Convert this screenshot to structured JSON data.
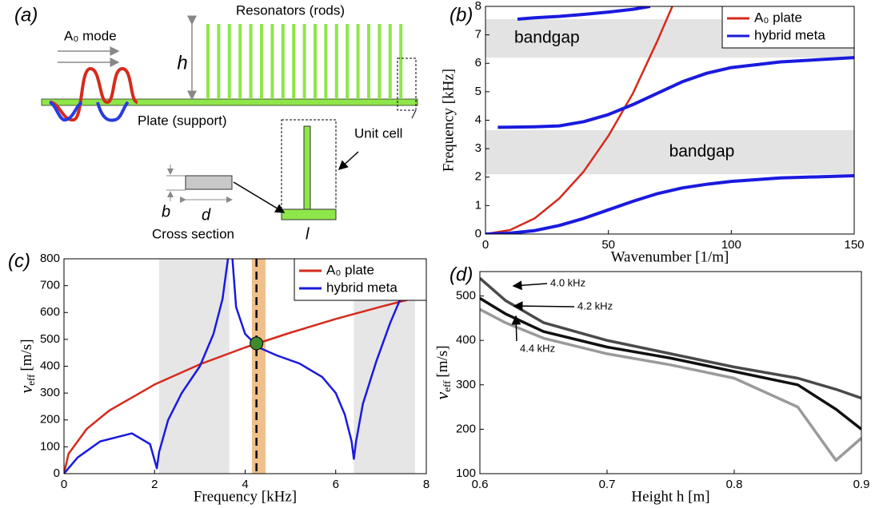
{
  "panel_a": {
    "label": "(a)",
    "mode": "A₀ mode",
    "rods": "Resonators (rods)",
    "height": "h",
    "plate": "Plate (support)",
    "unit_cell": "Unit cell",
    "b": "b",
    "d": "d",
    "cross_section": "Cross section",
    "l": "l"
  },
  "chart_data": [
    {
      "type": "line",
      "panel_label": "(b)",
      "x_label": "Wavenumber [1/m]",
      "y_label": "Frequency [kHz]",
      "xlim": [
        0,
        150
      ],
      "xticks": [
        0,
        50,
        100,
        150
      ],
      "ylim": [
        0,
        8
      ],
      "yticks": [
        0,
        1,
        2,
        3,
        4,
        5,
        6,
        7,
        8
      ],
      "y_bands": [
        [
          2.1,
          3.65
        ],
        [
          6.2,
          7.55
        ]
      ],
      "band_color": "#e3e3e3",
      "annotations": [
        "bandgap",
        "bandgap"
      ],
      "legend": "top-right",
      "series": [
        {
          "name": "A₀ plate",
          "color": "#d62a1c",
          "x": [
            0,
            10,
            20,
            30,
            40,
            50,
            60,
            70,
            76
          ],
          "values": [
            0,
            0.14,
            0.55,
            1.25,
            2.2,
            3.45,
            4.95,
            6.8,
            8
          ]
        },
        {
          "name": "hybrid meta",
          "color": "#1a1adf",
          "x": [
            0,
            10,
            20,
            30,
            40,
            50,
            60,
            70,
            80,
            90,
            100,
            120,
            150,
            null,
            5,
            20,
            30,
            40,
            50,
            60,
            70,
            80,
            90,
            100,
            120,
            150,
            null,
            13,
            20,
            30,
            40,
            50,
            60,
            67
          ],
          "values": [
            0,
            0.03,
            0.12,
            0.3,
            0.55,
            0.85,
            1.15,
            1.42,
            1.62,
            1.75,
            1.85,
            1.97,
            2.05,
            null,
            3.75,
            3.77,
            3.8,
            3.95,
            4.2,
            4.55,
            4.95,
            5.35,
            5.65,
            5.85,
            6.05,
            6.2,
            null,
            7.55,
            7.6,
            7.65,
            7.72,
            7.8,
            7.9,
            8.0
          ]
        }
      ]
    },
    {
      "type": "line",
      "panel_label": "(c)",
      "x_label": "Frequency [kHz]",
      "y_label": {
        "symbol": "v",
        "subscript": "eff",
        "unit": "[m/s]"
      },
      "xlim": [
        0,
        8
      ],
      "xticks": [
        0,
        2,
        4,
        6,
        8
      ],
      "ylim": [
        0,
        800
      ],
      "yticks": [
        0,
        100,
        200,
        300,
        400,
        500,
        600,
        700,
        800
      ],
      "x_bands": [
        [
          2.1,
          3.65
        ],
        [
          6.4,
          7.75
        ]
      ],
      "band_color": "#e6e6e6",
      "legend": "top-right",
      "highlight": {
        "x_band": [
          4.15,
          4.45
        ],
        "color": "#f0c08c",
        "line_x": 4.25,
        "point": [
          4.25,
          485
        ],
        "point_color": "#3f8a2a"
      },
      "series": [
        {
          "name": "A₀ plate",
          "color": "#d62a1c",
          "x": [
            0,
            0.1,
            0.5,
            1,
            2,
            3,
            4,
            5,
            6,
            7,
            8
          ],
          "values": [
            0,
            74,
            166,
            235,
            332,
            407,
            470,
            525,
            576,
            622,
            665
          ]
        },
        {
          "name": "hybrid meta",
          "color": "#1a1adf",
          "x": [
            0,
            0.3,
            0.8,
            1.5,
            1.9,
            2.05,
            2.1,
            2.3,
            2.6,
            3.0,
            3.3,
            3.5,
            3.62,
            null,
            3.72,
            3.8,
            4.0,
            4.3,
            4.7,
            5.2,
            5.7,
            6.0,
            6.2,
            6.35,
            6.4,
            6.45,
            6.6,
            6.9,
            7.2,
            7.5,
            7.7,
            7.85,
            null,
            7.95,
            8.0
          ],
          "values": [
            0,
            60,
            120,
            150,
            110,
            20,
            80,
            200,
            300,
            400,
            520,
            650,
            800,
            null,
            800,
            620,
            520,
            470,
            440,
            410,
            360,
            300,
            220,
            120,
            55,
            120,
            260,
            420,
            560,
            680,
            760,
            800,
            null,
            800,
            760
          ]
        }
      ]
    },
    {
      "type": "line",
      "panel_label": "(d)",
      "x_label": "Height h [m]",
      "y_label": {
        "symbol": "v",
        "subscript": "eff",
        "unit": "[m/s]"
      },
      "xlim": [
        0.6,
        0.9
      ],
      "xticks": [
        0.6,
        0.7,
        0.8,
        0.9
      ],
      "ylim": [
        100,
        555
      ],
      "yticks": [
        100,
        200,
        300,
        400,
        500
      ],
      "annotations": [
        "4.0 kHz",
        "4.2 kHz",
        "4.4 kHz"
      ],
      "x": [
        0.6,
        0.62,
        0.65,
        0.7,
        0.75,
        0.8,
        0.85,
        0.88,
        0.9
      ],
      "series": [
        {
          "color": "#4a4a4a",
          "values": [
            540,
            490,
            440,
            400,
            370,
            340,
            315,
            290,
            270
          ]
        },
        {
          "color": "#111111",
          "values": [
            495,
            460,
            420,
            385,
            360,
            330,
            300,
            245,
            200
          ]
        },
        {
          "color": "#9a9a9a",
          "values": [
            470,
            440,
            405,
            370,
            345,
            315,
            250,
            130,
            180
          ]
        }
      ]
    }
  ]
}
